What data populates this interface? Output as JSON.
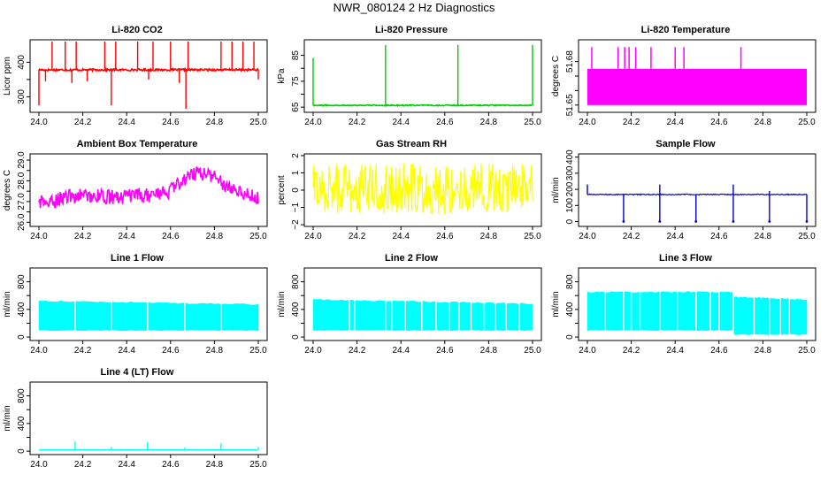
{
  "title": "NWR_080124  2 Hz Diagnostics",
  "x_tick_labels": [
    "24.0",
    "24.2",
    "24.4",
    "24.6",
    "24.8",
    "25.0"
  ],
  "chart_data": [
    {
      "id": "co2",
      "type": "line",
      "title": "Li-820 CO2",
      "ylabel": "Licor ppm",
      "color": "#ff0000",
      "x_range": [
        24.0,
        25.0
      ],
      "y_range": [
        255,
        465
      ],
      "yticks": [
        300,
        350,
        400
      ],
      "ytick_labels": [
        "300",
        "",
        "400"
      ],
      "baseline": 378,
      "noise": 3,
      "spikes": [
        {
          "x": 24.0,
          "y": 275
        },
        {
          "x": 24.03,
          "y": 345
        },
        {
          "x": 24.06,
          "y": 460
        },
        {
          "x": 24.12,
          "y": 460
        },
        {
          "x": 24.15,
          "y": 340
        },
        {
          "x": 24.17,
          "y": 460
        },
        {
          "x": 24.22,
          "y": 345
        },
        {
          "x": 24.3,
          "y": 460
        },
        {
          "x": 24.33,
          "y": 275
        },
        {
          "x": 24.35,
          "y": 460
        },
        {
          "x": 24.45,
          "y": 460
        },
        {
          "x": 24.5,
          "y": 350
        },
        {
          "x": 24.52,
          "y": 460
        },
        {
          "x": 24.6,
          "y": 460
        },
        {
          "x": 24.64,
          "y": 340
        },
        {
          "x": 24.67,
          "y": 265
        },
        {
          "x": 24.68,
          "y": 460
        },
        {
          "x": 24.83,
          "y": 460
        },
        {
          "x": 24.88,
          "y": 460
        },
        {
          "x": 24.93,
          "y": 460
        },
        {
          "x": 24.98,
          "y": 460
        },
        {
          "x": 25.0,
          "y": 350
        }
      ]
    },
    {
      "id": "pressure",
      "type": "line",
      "title": "Li-820 Pressure",
      "ylabel": "kPa",
      "color": "#00cc00",
      "x_range": [
        24.0,
        25.0
      ],
      "y_range": [
        63,
        91
      ],
      "yticks": [
        65,
        70,
        75,
        80,
        85
      ],
      "ytick_labels": [
        "65",
        "",
        "75",
        "",
        "85"
      ],
      "baseline": 65.7,
      "noise": 0.2,
      "spikes": [
        {
          "x": 24.0,
          "y": 84
        },
        {
          "x": 24.33,
          "y": 89
        },
        {
          "x": 24.66,
          "y": 89
        },
        {
          "x": 25.0,
          "y": 89
        }
      ]
    },
    {
      "id": "licor-temp",
      "type": "area",
      "title": "Li-820 Temperature",
      "ylabel": "degrees C",
      "color": "#ff00ff",
      "x_range": [
        24.0,
        25.0
      ],
      "y_range": [
        51.645,
        51.695
      ],
      "yticks": [
        51.65,
        51.66,
        51.67,
        51.68
      ],
      "ytick_labels": [
        "51.65",
        "",
        "",
        "51.68"
      ],
      "band": [
        51.65,
        51.675
      ],
      "spikes": [
        {
          "x": 24.02,
          "y": 51.69
        },
        {
          "x": 24.14,
          "y": 51.69
        },
        {
          "x": 24.17,
          "y": 51.69
        },
        {
          "x": 24.19,
          "y": 51.69
        },
        {
          "x": 24.22,
          "y": 51.69
        },
        {
          "x": 24.29,
          "y": 51.69
        },
        {
          "x": 24.4,
          "y": 51.69
        },
        {
          "x": 24.44,
          "y": 51.69
        },
        {
          "x": 24.7,
          "y": 51.69
        }
      ]
    },
    {
      "id": "box-temp",
      "type": "line",
      "title": "Ambient Box Temperature",
      "ylabel": "degrees C",
      "color": "#ff00ff",
      "x_range": [
        24.0,
        25.0
      ],
      "y_range": [
        25.8,
        29.3
      ],
      "yticks": [
        26.0,
        26.5,
        27.0,
        27.5,
        28.0,
        28.5,
        29.0
      ],
      "ytick_labels": [
        "26.0",
        "",
        "27.0",
        "",
        "28.0",
        "",
        "29.0"
      ],
      "profile": [
        {
          "x": 24.0,
          "y": 27.0
        },
        {
          "x": 24.05,
          "y": 26.9
        },
        {
          "x": 24.1,
          "y": 27.2
        },
        {
          "x": 24.2,
          "y": 27.3
        },
        {
          "x": 24.35,
          "y": 27.2
        },
        {
          "x": 24.5,
          "y": 27.3
        },
        {
          "x": 24.6,
          "y": 27.5
        },
        {
          "x": 24.66,
          "y": 28.1
        },
        {
          "x": 24.72,
          "y": 28.4
        },
        {
          "x": 24.78,
          "y": 28.3
        },
        {
          "x": 24.85,
          "y": 27.8
        },
        {
          "x": 24.92,
          "y": 27.5
        },
        {
          "x": 25.0,
          "y": 27.2
        }
      ],
      "noise": 0.35
    },
    {
      "id": "rh",
      "type": "line",
      "title": "Gas Stream RH",
      "ylabel": "percent",
      "color": "#ffff00",
      "x_range": [
        24.0,
        25.0
      ],
      "y_range": [
        -2.1,
        2.1
      ],
      "yticks": [
        -2,
        -1,
        0,
        1,
        2
      ],
      "ytick_labels": [
        "−2",
        "−1",
        "0",
        "1",
        "2"
      ],
      "baseline": 0.1,
      "noise": 1.5
    },
    {
      "id": "sample-flow",
      "type": "line",
      "title": "Sample Flow",
      "ylabel": "ml/min",
      "color": "#0000cc",
      "x_range": [
        24.0,
        25.0
      ],
      "y_range": [
        -30,
        420
      ],
      "yticks": [
        0,
        100,
        200,
        300,
        400
      ],
      "ytick_labels": [
        "0",
        "100",
        "200",
        "300",
        "400"
      ],
      "baseline": 168,
      "noise": 3,
      "dips": [
        {
          "x": 24.165,
          "y": 0
        },
        {
          "x": 24.33,
          "y": 0
        },
        {
          "x": 24.495,
          "y": 0
        },
        {
          "x": 24.665,
          "y": 0
        },
        {
          "x": 24.83,
          "y": 0
        },
        {
          "x": 25.0,
          "y": 0
        }
      ],
      "spikes": [
        {
          "x": 24.0,
          "y": 230
        },
        {
          "x": 24.33,
          "y": 230
        },
        {
          "x": 24.665,
          "y": 230
        },
        {
          "x": 24.83,
          "y": 190
        }
      ]
    },
    {
      "id": "line1",
      "type": "area",
      "title": "Line 1 Flow",
      "ylabel": "ml/min",
      "color": "#00ffff",
      "x_range": [
        24.0,
        25.0
      ],
      "y_range": [
        -50,
        1000
      ],
      "yticks": [
        0,
        200,
        400,
        600,
        800
      ],
      "ytick_labels": [
        "0",
        "",
        "400",
        "",
        "800"
      ],
      "band_segments": [
        {
          "x0": 24.0,
          "x1": 25.0,
          "low": 100,
          "high": 520,
          "high_end": 470
        }
      ],
      "gaps": [
        24.165,
        24.33,
        24.495,
        24.665,
        24.83
      ]
    },
    {
      "id": "line2",
      "type": "area",
      "title": "Line 2 Flow",
      "ylabel": "ml/min",
      "color": "#00ffff",
      "x_range": [
        24.0,
        25.0
      ],
      "y_range": [
        -50,
        1000
      ],
      "yticks": [
        0,
        200,
        400,
        600,
        800
      ],
      "ytick_labels": [
        "0",
        "",
        "400",
        "",
        "800"
      ],
      "band_segments": [
        {
          "x0": 24.0,
          "x1": 25.0,
          "low": 100,
          "high": 540,
          "high_end": 480
        }
      ],
      "gaps": [
        24.165,
        24.19,
        24.33,
        24.36,
        24.42,
        24.495,
        24.56,
        24.62,
        24.665,
        24.72,
        24.78,
        24.83,
        24.88,
        24.94
      ]
    },
    {
      "id": "line3",
      "type": "area",
      "title": "Line 3 Flow",
      "ylabel": "ml/min",
      "color": "#00ffff",
      "x_range": [
        24.0,
        25.0
      ],
      "y_range": [
        -50,
        1000
      ],
      "yticks": [
        0,
        200,
        400,
        600,
        800
      ],
      "ytick_labels": [
        "0",
        "",
        "400",
        "",
        "800"
      ],
      "band_segments": [
        {
          "x0": 24.0,
          "x1": 24.665,
          "low": 100,
          "high": 650,
          "high_end": 650
        },
        {
          "x0": 24.665,
          "x1": 25.0,
          "low": 40,
          "high": 580,
          "high_end": 540
        }
      ],
      "gaps": [
        24.08,
        24.165,
        24.2,
        24.24,
        24.33,
        24.41,
        24.495,
        24.56,
        24.6,
        24.665,
        24.76,
        24.83,
        24.88,
        24.92
      ]
    },
    {
      "id": "line4",
      "type": "line",
      "title": "Line 4 (LT) Flow",
      "ylabel": "ml/min",
      "color": "#00ffff",
      "x_range": [
        24.0,
        25.0
      ],
      "y_range": [
        -50,
        1000
      ],
      "yticks": [
        0,
        200,
        400,
        600,
        800
      ],
      "ytick_labels": [
        "0",
        "",
        "400",
        "",
        "800"
      ],
      "baseline": 20,
      "noise": 2,
      "spikes": [
        {
          "x": 24.165,
          "y": 140
        },
        {
          "x": 24.33,
          "y": 60
        },
        {
          "x": 24.495,
          "y": 130
        },
        {
          "x": 24.665,
          "y": 50
        },
        {
          "x": 24.83,
          "y": 115
        },
        {
          "x": 25.0,
          "y": 60
        }
      ]
    }
  ]
}
